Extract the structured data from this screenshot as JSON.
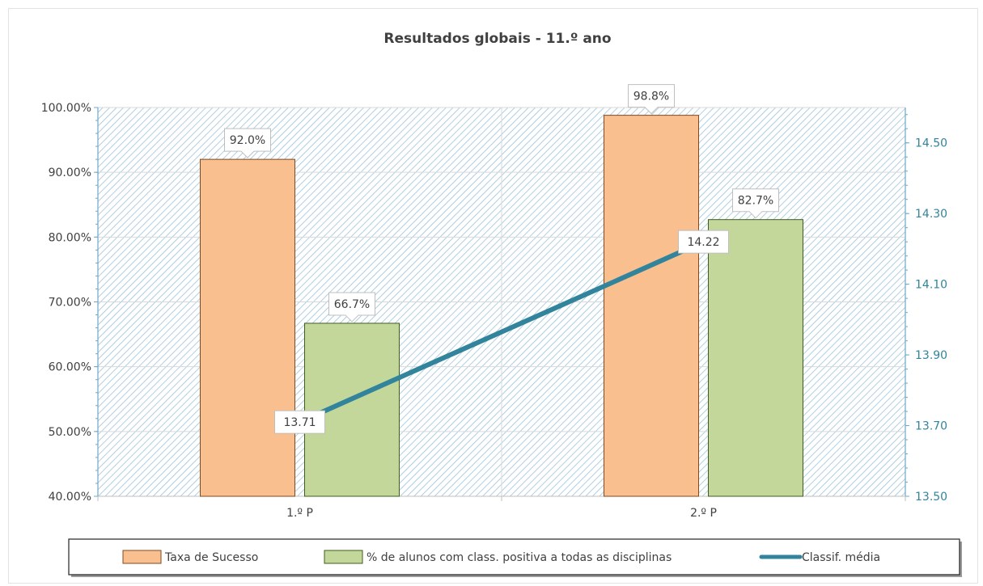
{
  "chart_data": {
    "type": "bar",
    "title": "Resultados globais - 11.º ano",
    "categories": [
      "1.º P",
      "2.º P"
    ],
    "series": [
      {
        "name": "Taxa de Sucesso",
        "kind": "bar",
        "axis": "left",
        "color": "#fabf8f",
        "stroke": "#7f4a20",
        "values": [
          92.0,
          98.8
        ],
        "labels": [
          "92.0%",
          "98.8%"
        ]
      },
      {
        "name": "% de alunos com class. positiva a todas as disciplinas",
        "kind": "bar",
        "axis": "left",
        "color": "#c4d79b",
        "stroke": "#3d5c1f",
        "values": [
          66.7,
          82.7
        ],
        "labels": [
          "66.7%",
          "82.7%"
        ]
      },
      {
        "name": "Classif. média",
        "kind": "line",
        "axis": "right",
        "color": "#31849b",
        "values": [
          13.71,
          14.22
        ],
        "labels": [
          "13.71",
          "14.22"
        ]
      }
    ],
    "y_left": {
      "min": 40,
      "max": 100,
      "ticks": [
        "40.00%",
        "50.00%",
        "60.00%",
        "70.00%",
        "80.00%",
        "90.00%",
        "100.00%"
      ]
    },
    "y_right": {
      "min": 13.5,
      "max": 14.6,
      "ticks": [
        "13.50",
        "13.70",
        "13.90",
        "14.10",
        "14.30",
        "14.50"
      ]
    },
    "legend_position": "bottom",
    "plot_background": "diagonal hatch, light blue",
    "grid": true
  }
}
